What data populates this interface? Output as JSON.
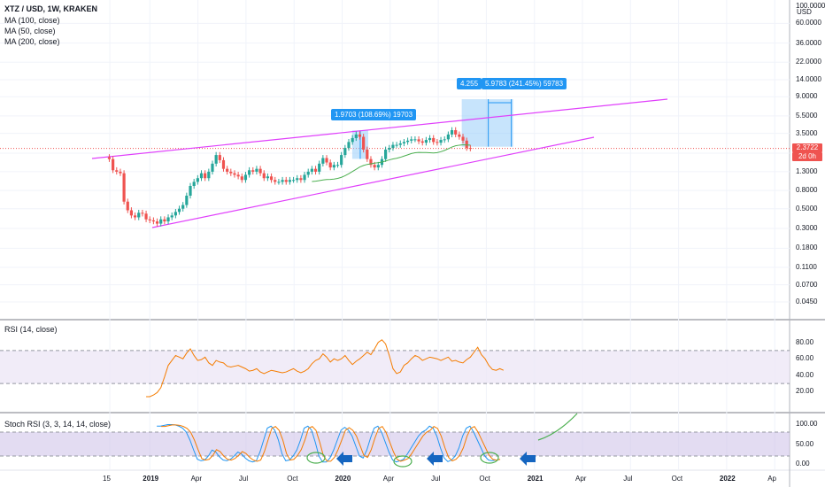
{
  "legend": {
    "symbol": "XTZ / USD, 1W, KRAKEN",
    "indicators": [
      "MA (100, close)",
      "MA (50, close)",
      "MA (200, close)"
    ]
  },
  "price_axis": {
    "unit": "USD",
    "ticks": [
      "100.0000",
      "60.0000",
      "36.0000",
      "22.0000",
      "14.0000",
      "9.0000",
      "5.5000",
      "3.5000",
      "2.1000",
      "1.3000",
      "0.8000",
      "0.5000",
      "0.3000",
      "0.1800",
      "0.1100",
      "0.0700",
      "0.0450"
    ],
    "current_price": "2.3722",
    "countdown": "2d 0h"
  },
  "time_axis": {
    "ticks": [
      "15",
      "2019",
      "Apr",
      "Jul",
      "Oct",
      "2020",
      "Apr",
      "Jul",
      "Oct",
      "2021",
      "Apr",
      "Jul",
      "Oct",
      "2022",
      "Ap"
    ]
  },
  "annotations": {
    "measure1": "1.9703 (108.69%) 19703",
    "measure2": "5.9783 (241.45%) 59783",
    "measure2_prefix": "4.255"
  },
  "rsi": {
    "title": "RSI (14, close)",
    "ticks": [
      "80.00",
      "60.00",
      "40.00",
      "20.00"
    ]
  },
  "stoch": {
    "title": "Stoch RSI (3, 3, 14, 14, close)",
    "ticks": [
      "100.00",
      "50.00",
      "0.00"
    ]
  },
  "colors": {
    "up": "#26a69a",
    "down": "#ef5350",
    "trendline": "#e040fb",
    "ma_green": "#4caf50",
    "rsi_line": "#f57c00",
    "rsi_band": "#ede7f6",
    "stoch_k": "#2196f3",
    "stoch_d": "#f57c00",
    "measure_box": "#90caf9",
    "arrow": "#1565c0",
    "circle": "#4caf50"
  },
  "chart_data": {
    "type": "candlestick",
    "title": "XTZ / USD, 1W, KRAKEN",
    "y_scale": "log",
    "ylim": [
      0.04,
      100
    ],
    "x_range": [
      "2018-10",
      "2022-04"
    ],
    "ohlc_weekly_approx": {
      "start": "2018-10-15",
      "close": [
        1.8,
        1.35,
        1.3,
        1.25,
        0.6,
        0.48,
        0.42,
        0.4,
        0.45,
        0.44,
        0.38,
        0.37,
        0.36,
        0.34,
        0.38,
        0.36,
        0.4,
        0.42,
        0.46,
        0.5,
        0.55,
        0.7,
        0.9,
        1.0,
        1.1,
        1.25,
        1.1,
        1.3,
        1.6,
        2.0,
        1.75,
        1.4,
        1.3,
        1.25,
        1.2,
        1.15,
        1.05,
        1.2,
        1.35,
        1.3,
        1.4,
        1.25,
        1.1,
        1.15,
        1.05,
        1.0,
        1.0,
        1.05,
        1.0,
        1.05,
        1.05,
        1.1,
        1.05,
        1.2,
        1.3,
        1.4,
        1.3,
        1.6,
        1.85,
        1.65,
        1.45,
        1.55,
        1.55,
        2.0,
        2.4,
        2.8,
        3.1,
        3.4,
        3.2,
        2.3,
        1.8,
        1.55,
        1.45,
        1.55,
        1.8,
        2.3,
        2.4,
        2.6,
        2.6,
        2.7,
        2.8,
        2.9,
        3.0,
        3.0,
        2.85,
        2.75,
        2.95,
        3.1,
        2.8,
        2.75,
        2.95,
        3.0,
        3.4,
        3.8,
        3.4,
        3.2,
        2.9,
        2.4,
        2.37
      ]
    },
    "series": [
      {
        "name": "MA (50, close)",
        "note": "green moving average line"
      }
    ],
    "measurements": [
      {
        "label": "1.9703 (108.69%) 19703",
        "from": 1.81,
        "to": 3.78
      },
      {
        "label": "5.9783 (241.45%) 59783",
        "from": 2.48,
        "to": 8.45,
        "prefix": "4.255"
      }
    ],
    "rsi_14": {
      "start": "2018-12-24",
      "values": [
        14,
        14,
        16,
        19,
        25,
        38,
        52,
        58,
        64,
        62,
        60,
        67,
        72,
        64,
        58,
        59,
        62,
        55,
        52,
        58,
        56,
        55,
        51,
        50,
        51,
        52,
        50,
        48,
        45,
        46,
        48,
        44,
        42,
        44,
        46,
        45,
        44,
        43,
        44,
        46,
        48,
        45,
        43,
        45,
        48,
        54,
        58,
        60,
        66,
        62,
        56,
        60,
        58,
        60,
        64,
        58,
        53,
        57,
        60,
        64,
        68,
        65,
        72,
        80,
        83,
        78,
        64,
        48,
        42,
        44,
        52,
        55,
        60,
        64,
        62,
        58,
        60,
        62,
        61,
        60,
        58,
        60,
        62,
        57,
        58,
        56,
        55,
        59,
        62,
        68,
        74,
        65,
        60,
        52,
        47,
        46,
        48,
        46
      ],
      "ylim": [
        0,
        100
      ],
      "bands": [
        30,
        70
      ]
    },
    "stoch_rsi": {
      "k_start": "2019-01-14",
      "k_values": [
        95,
        95,
        97,
        99,
        99,
        98,
        95,
        90,
        80,
        60,
        35,
        12,
        8,
        10,
        20,
        35,
        30,
        18,
        10,
        8,
        12,
        20,
        30,
        25,
        15,
        8,
        5,
        8,
        30,
        60,
        90,
        95,
        85,
        60,
        25,
        8,
        10,
        20,
        35,
        60,
        90,
        95,
        85,
        55,
        20,
        5,
        5,
        15,
        35,
        60,
        85,
        92,
        85,
        70,
        45,
        20,
        15,
        35,
        65,
        90,
        95,
        80,
        55,
        30,
        10,
        5,
        8,
        12,
        25,
        40,
        55,
        70,
        80,
        85,
        95,
        90,
        70,
        40,
        15,
        6,
        10,
        20,
        40,
        70,
        90,
        95,
        80,
        60,
        40,
        20,
        10,
        8,
        10
      ],
      "ylim": [
        0,
        100
      ],
      "bands": [
        20,
        80
      ]
    }
  }
}
